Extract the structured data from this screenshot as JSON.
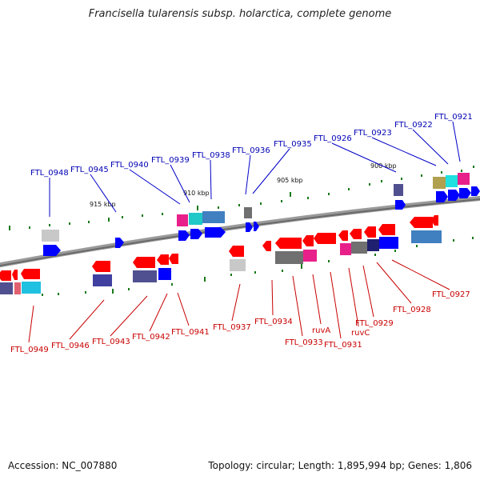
{
  "title": "Francisella tularensis subsp. holarctica, complete genome",
  "accession_text": "Accession: NC_007880",
  "summary_text": "Topology: circular; Length: 1,895,994 bp; Genes: 1,806",
  "colors": {
    "backbone": "#7a7a7a",
    "forward_label": "#0000b4",
    "reverse_label": "#c80000",
    "forward_gene": "#0000ff",
    "reverse_gene": "#ff0000",
    "tick": "#1a7a1a"
  },
  "scale_labels": [
    "915 kbp",
    "910 kbp",
    "905 kbp",
    "900 kbp"
  ],
  "forward_labels": [
    "FTL_0948",
    "FTL_0945",
    "FTL_0940",
    "FTL_0939",
    "FTL_0938",
    "FTL_0936",
    "FTL_0935",
    "FTL_0926",
    "FTL_0923",
    "FTL_0922",
    "FTL_0921"
  ],
  "reverse_labels": [
    "FTL_0949",
    "FTL_0946",
    "FTL_0943",
    "FTL_0942",
    "FTL_0941",
    "FTL_0937",
    "FTL_0934",
    "FTL_0933",
    "ruvA",
    "FTL_0931",
    "ruvC",
    "FTL_0929",
    "FTL_0928",
    "FTL_0927"
  ]
}
